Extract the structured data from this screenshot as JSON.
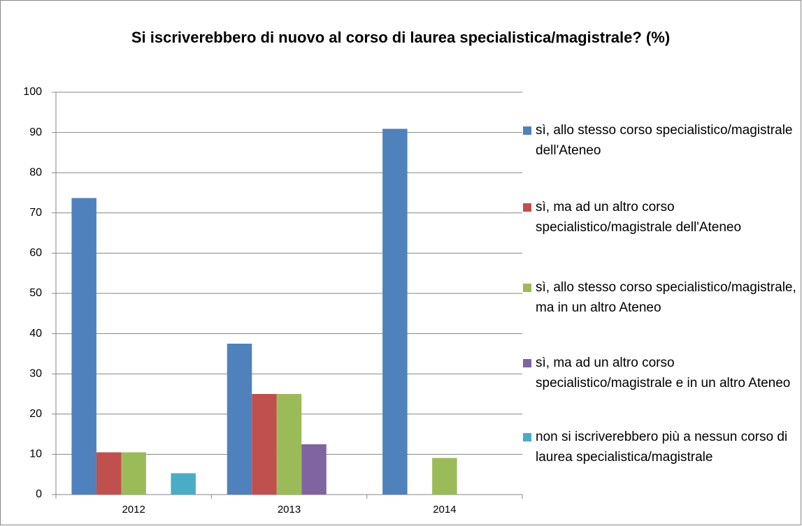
{
  "chart_data": {
    "type": "bar",
    "title": "Si iscriverebbero di nuovo al corso di laurea specialistica/magistrale? (%)",
    "categories": [
      "2012",
      "2013",
      "2014"
    ],
    "series": [
      {
        "name": "sì, allo stesso corso specialistico/magistrale dell'Ateneo",
        "color": "#4f81bd",
        "values": [
          73.7,
          37.5,
          90.9
        ]
      },
      {
        "name": "sì, ma ad un altro corso specialistico/magistrale dell'Ateneo",
        "color": "#c0504d",
        "values": [
          10.5,
          25,
          0
        ]
      },
      {
        "name": "sì, allo stesso corso specialistico/magistrale, ma in un altro Ateneo",
        "color": "#9bbb59",
        "values": [
          10.5,
          25,
          9.1
        ]
      },
      {
        "name": "sì, ma ad un altro corso specialistico/magistrale e in un altro Ateneo",
        "color": "#8064a2",
        "values": [
          0,
          12.5,
          0
        ]
      },
      {
        "name": "non si iscriverebbero più a nessun corso di laurea specialistica/magistrale",
        "color": "#4bacc6",
        "values": [
          5.3,
          0,
          0
        ]
      }
    ],
    "ylim": [
      0,
      100
    ],
    "yticks": [
      0,
      10,
      20,
      30,
      40,
      50,
      60,
      70,
      80,
      90,
      100
    ],
    "grid": true,
    "legend": "right"
  }
}
